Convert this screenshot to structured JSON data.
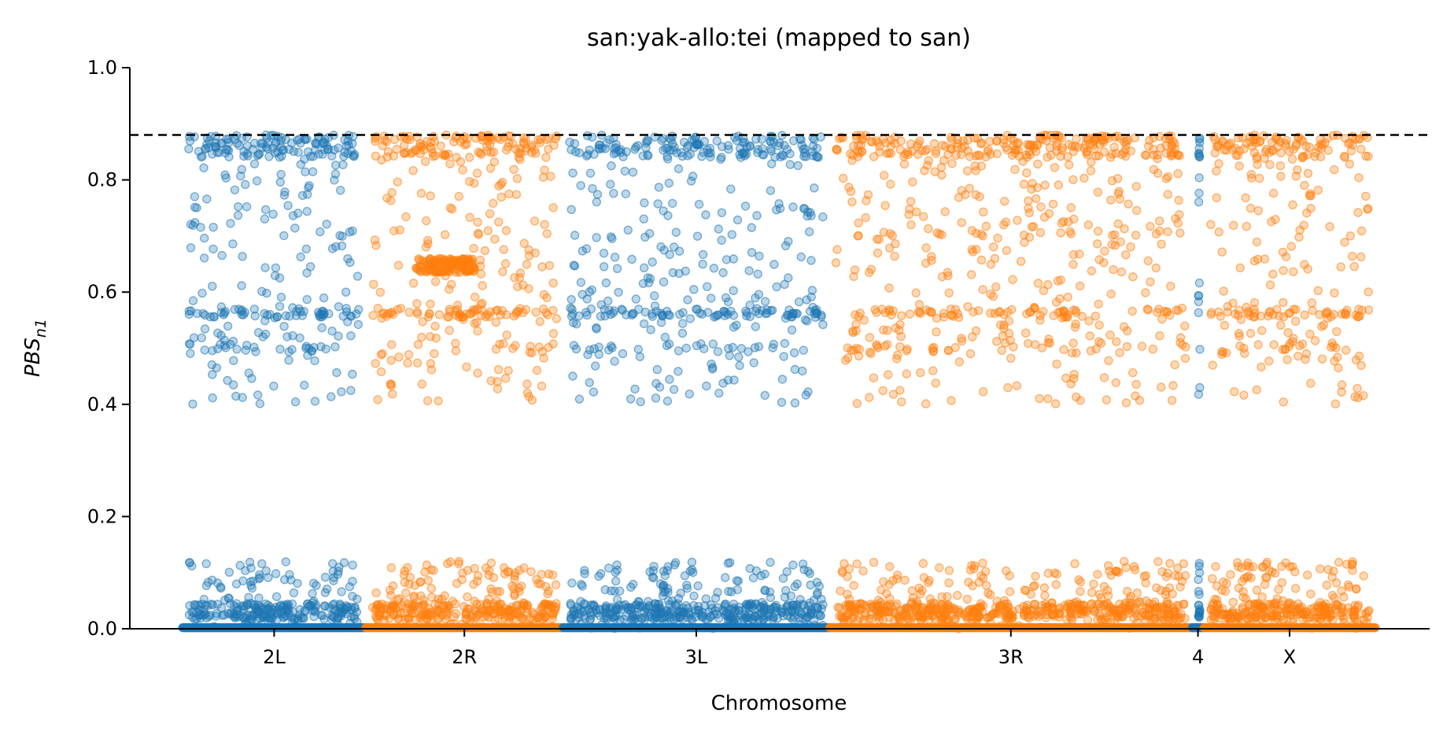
{
  "chart_data": {
    "type": "scatter",
    "title": "san:yak-allo:tei (mapped to san)",
    "xlabel": "Chromosome",
    "ylabel": {
      "main": "PBS",
      "sub": "n1"
    },
    "ylim": [
      0,
      1.0
    ],
    "yticks": [
      "0.0",
      "0.2",
      "0.4",
      "0.6",
      "0.8",
      "1.0"
    ],
    "threshold": 0.88,
    "colors": {
      "blue": "#1f77b4",
      "orange": "#ff7f0e"
    },
    "chromosomes": [
      {
        "name": "2L",
        "start": 0.0,
        "end": 23.5,
        "color": "blue"
      },
      {
        "name": "2R",
        "start": 23.5,
        "end": 48.8,
        "color": "orange"
      },
      {
        "name": "3L",
        "start": 48.8,
        "end": 83.0,
        "color": "blue"
      },
      {
        "name": "3R",
        "start": 83.0,
        "end": 129.5,
        "color": "orange"
      },
      {
        "name": "4",
        "start": 129.5,
        "end": 131.0,
        "color": "blue"
      },
      {
        "name": "X",
        "start": 131.0,
        "end": 153.0,
        "color": "orange"
      }
    ],
    "grid": false,
    "legend": "none"
  }
}
